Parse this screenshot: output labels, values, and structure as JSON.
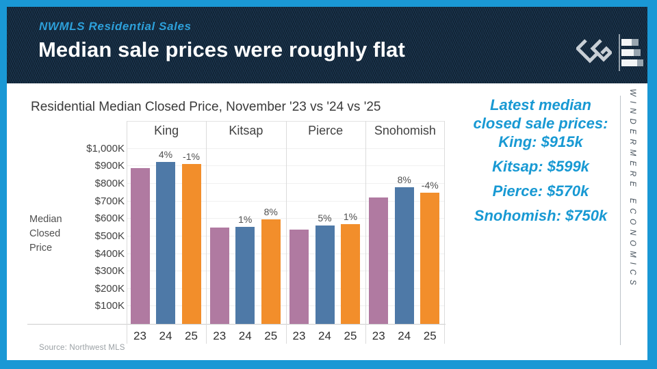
{
  "header": {
    "kicker": "NWMLS Residential Sales",
    "title": "Median sale prices were roughly flat"
  },
  "icons": {
    "windermere_w": "diamond-w-monogram",
    "economics_logo": "horizontal-bar-chart"
  },
  "colors": {
    "frame_accent": "#1a98d5",
    "header_background": "#142a3f",
    "kicker_text": "#2da0da",
    "panel_text": "#1899d3",
    "bar_23": "#b07aa1",
    "bar_24": "#4e79a7",
    "bar_25": "#f28e2b"
  },
  "chart_data": {
    "type": "bar",
    "title": "Residential Median Closed Price, November '23 vs '24 vs '25",
    "ylabel": "Median\nClosed\nPrice",
    "ylim": [
      0,
      1050
    ],
    "ytick_values": [
      100,
      200,
      300,
      400,
      500,
      600,
      700,
      800,
      900,
      1000
    ],
    "ytick_labels": [
      "$100K",
      "$200K",
      "$300K",
      "$400K",
      "$500K",
      "$600K",
      "$700K",
      "$800K",
      "$900K",
      "$1,000K"
    ],
    "categories": [
      "King",
      "Kitsap",
      "Pierce",
      "Snohomish"
    ],
    "grid": true,
    "legend": "none",
    "series": [
      {
        "name": "23",
        "color": "#b07aa1",
        "values": [
          889,
          549,
          537,
          723
        ],
        "labels": [
          null,
          null,
          null,
          null
        ]
      },
      {
        "name": "24",
        "color": "#4e79a7",
        "values": [
          924,
          555,
          564,
          781
        ],
        "labels": [
          "4%",
          "1%",
          "5%",
          "8%"
        ]
      },
      {
        "name": "25",
        "color": "#f28e2b",
        "values": [
          915,
          599,
          570,
          750
        ],
        "labels": [
          "-1%",
          "8%",
          "1%",
          "-4%"
        ]
      }
    ],
    "source_note": "Source: Northwest MLS"
  },
  "right_panel": {
    "blocks": [
      "Latest median\nclosed sale prices:\nKing: $915k",
      "Kitsap: $599k",
      "Pierce: $570k",
      "Snohomish: $750k"
    ]
  },
  "sidebar": {
    "vertical_text": "WINDERMERE ECONOMICS"
  }
}
